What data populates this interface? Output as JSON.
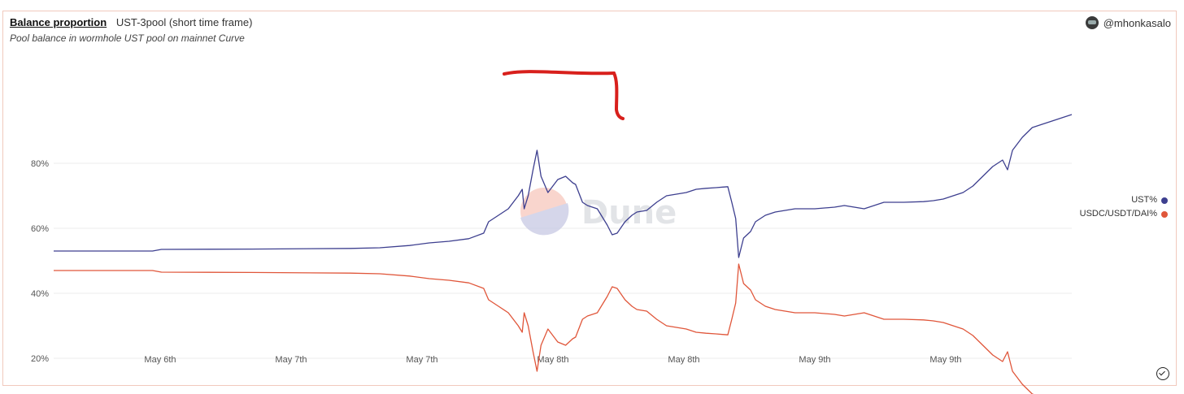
{
  "header": {
    "title": "Balance proportion",
    "subtitle": "UST-3pool (short time frame)",
    "description": "Pool balance in wormhole UST pool on mainnet Curve",
    "author": "@mhonkasalo"
  },
  "watermark": {
    "text": "Dune"
  },
  "chart_data": {
    "type": "line",
    "x_ticks": [
      "May 6th",
      "May 7th",
      "May 7th",
      "May 8th",
      "May 8th",
      "May 9th",
      "May 9th"
    ],
    "y_ticks": [
      "20%",
      "40%",
      "60%",
      "80%"
    ],
    "ylim": [
      0,
      100
    ],
    "xlim": [
      0,
      100
    ],
    "grid": "horizontal",
    "legend_position": "right",
    "series": [
      {
        "name": "UST%",
        "color": "#3d3f8f",
        "points": [
          [
            0,
            53
          ],
          [
            10,
            53
          ],
          [
            10.9,
            53.5
          ],
          [
            20,
            53.6
          ],
          [
            30,
            53.8
          ],
          [
            33,
            54
          ],
          [
            36,
            54.7
          ],
          [
            38,
            55.5
          ],
          [
            40,
            56
          ],
          [
            42,
            56.8
          ],
          [
            43.5,
            58.5
          ],
          [
            44,
            62
          ],
          [
            45,
            64
          ],
          [
            46,
            66
          ],
          [
            47,
            70
          ],
          [
            47.4,
            72
          ],
          [
            47.6,
            66
          ],
          [
            48,
            70
          ],
          [
            48.5,
            78
          ],
          [
            48.9,
            84
          ],
          [
            49.3,
            76
          ],
          [
            50,
            71
          ],
          [
            51,
            75
          ],
          [
            51.8,
            76
          ],
          [
            52.5,
            74
          ],
          [
            52.8,
            73.5
          ],
          [
            53.5,
            68
          ],
          [
            54,
            67
          ],
          [
            55,
            66
          ],
          [
            56,
            61
          ],
          [
            56.5,
            58
          ],
          [
            57,
            58.5
          ],
          [
            57.8,
            62
          ],
          [
            58.5,
            64
          ],
          [
            59,
            65
          ],
          [
            60,
            65.5
          ],
          [
            61,
            68
          ],
          [
            62,
            70
          ],
          [
            63,
            70.5
          ],
          [
            64,
            71
          ],
          [
            65,
            72
          ],
          [
            66,
            72.3
          ],
          [
            67,
            72.5
          ],
          [
            68.2,
            72.8
          ],
          [
            68.6,
            68
          ],
          [
            69,
            63
          ],
          [
            69.3,
            51
          ],
          [
            69.8,
            57
          ],
          [
            70.5,
            59
          ],
          [
            71,
            62
          ],
          [
            72,
            64
          ],
          [
            73,
            65
          ],
          [
            75,
            66
          ],
          [
            77,
            66
          ],
          [
            79,
            66.5
          ],
          [
            80,
            67
          ],
          [
            82,
            66
          ],
          [
            84,
            68
          ],
          [
            86,
            68
          ],
          [
            88,
            68.2
          ],
          [
            89,
            68.5
          ],
          [
            90,
            69
          ],
          [
            91,
            70
          ],
          [
            92,
            71
          ],
          [
            93,
            73
          ],
          [
            94,
            76
          ],
          [
            95,
            79
          ],
          [
            96,
            81
          ],
          [
            96.5,
            78
          ],
          [
            97,
            84
          ],
          [
            98,
            88
          ],
          [
            99,
            91
          ],
          [
            100,
            92
          ],
          [
            101,
            93
          ],
          [
            102,
            94
          ],
          [
            103,
            95
          ]
        ]
      },
      {
        "name": "USDC/USDT/DAI%",
        "color": "#e0563a",
        "points": [
          [
            0,
            47
          ],
          [
            10,
            47
          ],
          [
            10.9,
            46.5
          ],
          [
            20,
            46.4
          ],
          [
            30,
            46.2
          ],
          [
            33,
            46
          ],
          [
            36,
            45.3
          ],
          [
            38,
            44.5
          ],
          [
            40,
            44
          ],
          [
            42,
            43.2
          ],
          [
            43.5,
            41.5
          ],
          [
            44,
            38
          ],
          [
            45,
            36
          ],
          [
            46,
            34
          ],
          [
            47,
            30
          ],
          [
            47.4,
            28
          ],
          [
            47.6,
            34
          ],
          [
            48,
            30
          ],
          [
            48.5,
            22
          ],
          [
            48.9,
            16
          ],
          [
            49.3,
            24
          ],
          [
            50,
            29
          ],
          [
            51,
            25
          ],
          [
            51.8,
            24
          ],
          [
            52.5,
            26
          ],
          [
            52.8,
            26.5
          ],
          [
            53.5,
            32
          ],
          [
            54,
            33
          ],
          [
            55,
            34
          ],
          [
            56,
            39
          ],
          [
            56.5,
            42
          ],
          [
            57,
            41.5
          ],
          [
            57.8,
            38
          ],
          [
            58.5,
            36
          ],
          [
            59,
            35
          ],
          [
            60,
            34.5
          ],
          [
            61,
            32
          ],
          [
            62,
            30
          ],
          [
            63,
            29.5
          ],
          [
            64,
            29
          ],
          [
            65,
            28
          ],
          [
            66,
            27.7
          ],
          [
            67,
            27.5
          ],
          [
            68.2,
            27.2
          ],
          [
            68.6,
            32
          ],
          [
            69,
            37
          ],
          [
            69.3,
            49
          ],
          [
            69.8,
            43
          ],
          [
            70.5,
            41
          ],
          [
            71,
            38
          ],
          [
            72,
            36
          ],
          [
            73,
            35
          ],
          [
            75,
            34
          ],
          [
            77,
            34
          ],
          [
            79,
            33.5
          ],
          [
            80,
            33
          ],
          [
            82,
            34
          ],
          [
            84,
            32
          ],
          [
            86,
            32
          ],
          [
            88,
            31.8
          ],
          [
            89,
            31.5
          ],
          [
            90,
            31
          ],
          [
            91,
            30
          ],
          [
            92,
            29
          ],
          [
            93,
            27
          ],
          [
            94,
            24
          ],
          [
            95,
            21
          ],
          [
            96,
            19
          ],
          [
            96.5,
            22
          ],
          [
            97,
            16
          ],
          [
            98,
            12
          ],
          [
            99,
            9
          ],
          [
            100,
            8
          ],
          [
            101,
            7
          ],
          [
            102,
            6
          ],
          [
            103,
            5
          ]
        ]
      }
    ]
  }
}
